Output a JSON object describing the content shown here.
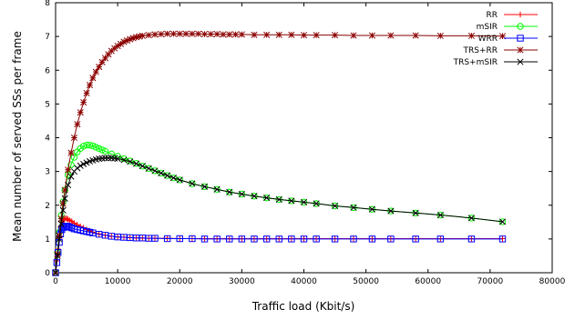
{
  "chart_data": {
    "type": "line",
    "title": "",
    "xlabel": "Traffic load (Kbit/s)",
    "ylabel": "Mean number of served SSs per frame",
    "xlim": [
      0,
      80000
    ],
    "ylim": [
      0,
      8
    ],
    "xticks": [
      0,
      10000,
      20000,
      30000,
      40000,
      50000,
      60000,
      70000,
      80000
    ],
    "yticks": [
      0,
      1,
      2,
      3,
      4,
      5,
      6,
      7,
      8
    ],
    "grid": false,
    "legend_position": "top-right",
    "series": [
      {
        "name": "RR",
        "color": "#ff0000",
        "marker": "plus",
        "x": [
          0,
          200,
          400,
          600,
          800,
          1000,
          1200,
          1400,
          1600,
          1800,
          2000,
          2300,
          2600,
          3000,
          3500,
          4000,
          4500,
          5000,
          5500,
          6000,
          7000,
          8000,
          9000,
          10000,
          11000,
          12000,
          13000,
          14000,
          15000,
          16000,
          18000,
          20000,
          22000,
          24000,
          26000,
          28000,
          30000,
          32000,
          34000,
          36000,
          38000,
          40000,
          42000,
          45000,
          48000,
          51000,
          54000,
          58000,
          62000,
          67000,
          72000
        ],
        "y": [
          0.0,
          0.35,
          0.7,
          1.05,
          1.35,
          1.5,
          1.57,
          1.6,
          1.61,
          1.6,
          1.58,
          1.55,
          1.52,
          1.47,
          1.42,
          1.37,
          1.33,
          1.28,
          1.24,
          1.2,
          1.15,
          1.11,
          1.08,
          1.06,
          1.05,
          1.04,
          1.03,
          1.03,
          1.02,
          1.02,
          1.02,
          1.01,
          1.01,
          1.01,
          1.01,
          1.01,
          1.01,
          1.01,
          1.01,
          1.01,
          1.01,
          1.01,
          1.01,
          1.01,
          1.01,
          1.01,
          1.01,
          1.01,
          1.01,
          1.01,
          1.01
        ]
      },
      {
        "name": "mSIR",
        "color": "#00ff00",
        "marker": "circle",
        "x": [
          0,
          300,
          600,
          900,
          1200,
          1500,
          2000,
          2500,
          3000,
          3500,
          4000,
          4500,
          5000,
          5500,
          6000,
          6500,
          7000,
          7500,
          8000,
          9000,
          10000,
          11000,
          12000,
          13000,
          14000,
          15000,
          16000,
          17000,
          18000,
          19000,
          20000,
          22000,
          24000,
          26000,
          28000,
          30000,
          32000,
          34000,
          36000,
          38000,
          40000,
          42000,
          45000,
          48000,
          51000,
          54000,
          58000,
          62000,
          67000,
          72000
        ],
        "y": [
          0.0,
          0.6,
          1.2,
          1.7,
          2.1,
          2.45,
          2.9,
          3.2,
          3.42,
          3.58,
          3.68,
          3.75,
          3.78,
          3.78,
          3.76,
          3.72,
          3.68,
          3.64,
          3.6,
          3.52,
          3.45,
          3.38,
          3.31,
          3.24,
          3.16,
          3.09,
          3.02,
          2.95,
          2.88,
          2.81,
          2.75,
          2.64,
          2.55,
          2.47,
          2.39,
          2.33,
          2.27,
          2.22,
          2.17,
          2.13,
          2.09,
          2.05,
          1.98,
          1.93,
          1.88,
          1.83,
          1.77,
          1.71,
          1.62,
          1.51
        ]
      },
      {
        "name": "WRR",
        "color": "#0000ff",
        "marker": "square",
        "x": [
          0,
          200,
          400,
          600,
          800,
          1000,
          1200,
          1400,
          1600,
          1800,
          2000,
          2300,
          2600,
          3000,
          3500,
          4000,
          4500,
          5000,
          5500,
          6000,
          7000,
          8000,
          9000,
          10000,
          11000,
          12000,
          13000,
          14000,
          15000,
          16000,
          18000,
          20000,
          22000,
          24000,
          26000,
          28000,
          30000,
          32000,
          34000,
          36000,
          38000,
          40000,
          42000,
          45000,
          48000,
          51000,
          54000,
          58000,
          62000,
          67000,
          72000
        ],
        "y": [
          0.0,
          0.3,
          0.6,
          0.9,
          1.15,
          1.28,
          1.34,
          1.37,
          1.38,
          1.38,
          1.37,
          1.35,
          1.33,
          1.3,
          1.28,
          1.26,
          1.24,
          1.22,
          1.2,
          1.18,
          1.14,
          1.11,
          1.08,
          1.06,
          1.05,
          1.04,
          1.03,
          1.03,
          1.02,
          1.02,
          1.01,
          1.01,
          1.01,
          1.0,
          1.0,
          1.0,
          1.0,
          1.0,
          1.0,
          1.0,
          1.0,
          1.0,
          1.0,
          1.0,
          1.0,
          1.0,
          1.0,
          1.0,
          1.0,
          1.0,
          1.0
        ]
      },
      {
        "name": "TRS+RR",
        "color": "#8b0000",
        "marker": "star",
        "x": [
          0,
          300,
          600,
          900,
          1200,
          1500,
          2000,
          2500,
          3000,
          3500,
          4000,
          4500,
          5000,
          5500,
          6000,
          6500,
          7000,
          7500,
          8000,
          8500,
          9000,
          9500,
          10000,
          10500,
          11000,
          11500,
          12000,
          12500,
          13000,
          13500,
          14000,
          15000,
          16000,
          17000,
          18000,
          19000,
          20000,
          21000,
          22000,
          23000,
          24000,
          25000,
          26000,
          27000,
          28000,
          29000,
          30000,
          32000,
          34000,
          36000,
          38000,
          40000,
          42000,
          45000,
          48000,
          51000,
          54000,
          58000,
          62000,
          67000,
          72000
        ],
        "y": [
          0.0,
          0.55,
          1.1,
          1.6,
          2.05,
          2.45,
          3.05,
          3.55,
          4.0,
          4.4,
          4.75,
          5.05,
          5.32,
          5.56,
          5.77,
          5.95,
          6.1,
          6.24,
          6.36,
          6.47,
          6.57,
          6.65,
          6.72,
          6.78,
          6.84,
          6.88,
          6.92,
          6.95,
          6.98,
          7.0,
          7.02,
          7.04,
          7.06,
          7.07,
          7.08,
          7.08,
          7.08,
          7.08,
          7.08,
          7.08,
          7.07,
          7.07,
          7.07,
          7.06,
          7.06,
          7.06,
          7.06,
          7.05,
          7.05,
          7.05,
          7.05,
          7.04,
          7.04,
          7.04,
          7.03,
          7.03,
          7.03,
          7.03,
          7.02,
          7.02,
          7.01
        ]
      },
      {
        "name": "TRS+mSIR",
        "color": "#000000",
        "marker": "x",
        "x": [
          0,
          300,
          600,
          900,
          1200,
          1500,
          2000,
          2500,
          3000,
          3500,
          4000,
          4500,
          5000,
          5500,
          6000,
          6500,
          7000,
          7500,
          8000,
          8500,
          9000,
          9500,
          10000,
          11000,
          12000,
          13000,
          14000,
          15000,
          16000,
          17000,
          18000,
          19000,
          20000,
          22000,
          24000,
          26000,
          28000,
          30000,
          32000,
          34000,
          36000,
          38000,
          40000,
          42000,
          45000,
          48000,
          51000,
          54000,
          58000,
          62000,
          67000,
          72000
        ],
        "y": [
          0.0,
          0.5,
          1.0,
          1.45,
          1.85,
          2.2,
          2.6,
          2.85,
          3.0,
          3.1,
          3.17,
          3.22,
          3.26,
          3.3,
          3.33,
          3.36,
          3.38,
          3.39,
          3.4,
          3.4,
          3.4,
          3.39,
          3.38,
          3.34,
          3.29,
          3.23,
          3.16,
          3.09,
          3.02,
          2.95,
          2.88,
          2.81,
          2.75,
          2.64,
          2.55,
          2.47,
          2.39,
          2.33,
          2.27,
          2.22,
          2.17,
          2.13,
          2.09,
          2.05,
          1.98,
          1.93,
          1.88,
          1.83,
          1.77,
          1.71,
          1.62,
          1.51
        ]
      }
    ]
  }
}
